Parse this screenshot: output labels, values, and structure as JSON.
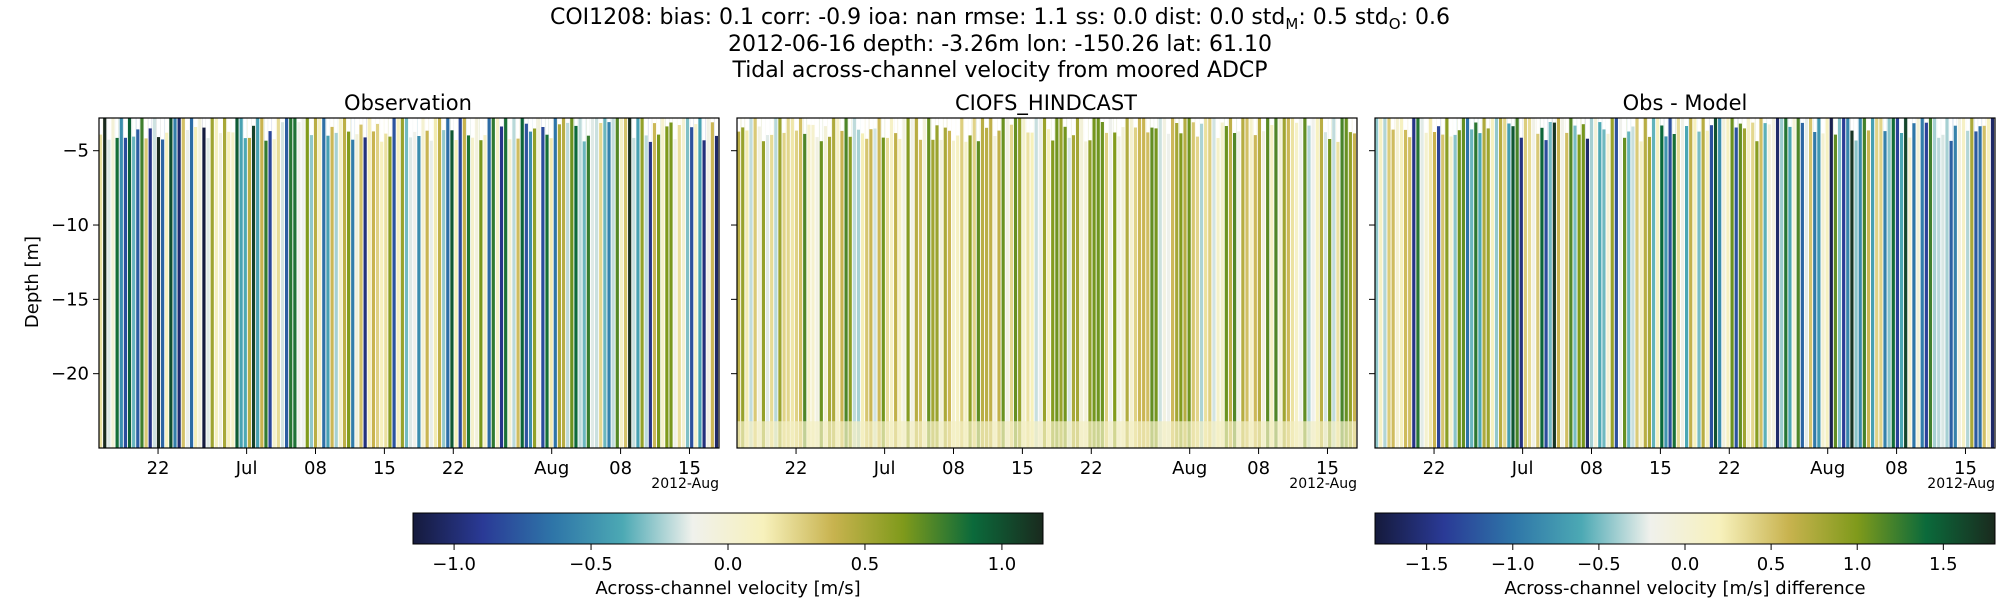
{
  "header": {
    "line1_parts": [
      "COI1208: bias: 0.1  corr: -0.9  ioa: nan  rmse: 1.1  ss: 0.0  dist: 0.0  std",
      "M",
      ": 0.5  std",
      "O",
      ": 0.6"
    ],
    "line2": "2012-06-16 depth: -3.26m lon: -150.26 lat: 61.10",
    "line3": "Tidal across-channel velocity from moored ADCP"
  },
  "chart_data": [
    {
      "type": "heatmap",
      "title": "Observation",
      "ylabel": "Depth [m]",
      "xlabel": "",
      "xlim": [
        "2012-06-16",
        "2012-08-18"
      ],
      "ylim": [
        -25,
        -2.8
      ],
      "x_ticks": [
        "22",
        "Jul",
        "08",
        "15",
        "22",
        "Aug",
        "08",
        "15"
      ],
      "x_tick_dates": [
        "2012-06-22",
        "2012-07-01",
        "2012-07-08",
        "2012-07-15",
        "2012-07-22",
        "2012-08-01",
        "2012-08-08",
        "2012-08-15"
      ],
      "x_offset_label": "2012-Aug",
      "y_ticks": [
        -5,
        -10,
        -15,
        -20
      ],
      "colormap": "delta",
      "color_range": [
        -1.15,
        1.15
      ]
    },
    {
      "type": "heatmap",
      "title": "CIOFS_HINDCAST",
      "xlim": [
        "2012-06-16",
        "2012-08-18"
      ],
      "ylim": [
        -25,
        -2.8
      ],
      "x_ticks": [
        "22",
        "Jul",
        "08",
        "15",
        "22",
        "Aug",
        "08",
        "15"
      ],
      "x_tick_dates": [
        "2012-06-22",
        "2012-07-01",
        "2012-07-08",
        "2012-07-15",
        "2012-07-22",
        "2012-08-01",
        "2012-08-08",
        "2012-08-15"
      ],
      "x_offset_label": "2012-Aug",
      "y_ticks": [
        -5,
        -10,
        -15,
        -20
      ],
      "colormap": "delta",
      "color_range": [
        -1.15,
        1.15
      ]
    },
    {
      "type": "heatmap",
      "title": "Obs - Model",
      "xlim": [
        "2012-06-16",
        "2012-08-18"
      ],
      "ylim": [
        -25,
        -2.8
      ],
      "x_ticks": [
        "22",
        "Jul",
        "08",
        "15",
        "22",
        "Aug",
        "08",
        "15"
      ],
      "x_tick_dates": [
        "2012-06-22",
        "2012-07-01",
        "2012-07-08",
        "2012-07-15",
        "2012-07-22",
        "2012-08-01",
        "2012-08-08",
        "2012-08-15"
      ],
      "x_offset_label": "2012-Aug",
      "y_ticks": [
        -5,
        -10,
        -15,
        -20
      ],
      "colormap": "delta",
      "color_range": [
        -1.8,
        1.8
      ]
    }
  ],
  "colorbars": [
    {
      "label": "Across-channel velocity [m/s]",
      "range": [
        -1.15,
        1.15
      ],
      "ticks": [
        -1.0,
        -0.5,
        0.0,
        0.5,
        1.0
      ],
      "tick_labels": [
        "−1.0",
        "−0.5",
        "0.0",
        "0.5",
        "1.0"
      ]
    },
    {
      "label": "Across-channel velocity [m/s] difference",
      "range": [
        -1.8,
        1.8
      ],
      "ticks": [
        -1.5,
        -1.0,
        -0.5,
        0.0,
        0.5,
        1.0,
        1.5
      ],
      "tick_labels": [
        "−1.5",
        "−1.0",
        "−0.5",
        "0.0",
        "0.5",
        "1.0",
        "1.5"
      ]
    }
  ],
  "colors": {
    "colormap_stops": [
      "#151a3c",
      "#2a3a96",
      "#2e75a8",
      "#4ca9b4",
      "#f0f1ec",
      "#f7f1bc",
      "#c8b34f",
      "#7f9a1b",
      "#0b6a3b",
      "#1a2a1e"
    ]
  }
}
